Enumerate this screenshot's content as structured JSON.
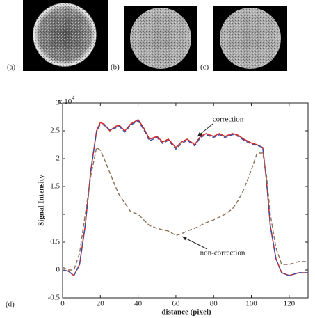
{
  "panel_labels": [
    "(a)",
    "(b)",
    "(c)",
    "(d)"
  ],
  "chart_data": {
    "type": "line",
    "y_scale_base": "x 10",
    "y_scale_exponent": "4",
    "xlabel": "distance (pixel)",
    "ylabel": "Signal Intensity",
    "xlim": [
      0,
      130
    ],
    "xticks": [
      0,
      20,
      40,
      60,
      80,
      100,
      120
    ],
    "ylim": [
      -0.5,
      3
    ],
    "yticks": [
      -0.5,
      0,
      0.5,
      1,
      1.5,
      2,
      2.5,
      3
    ],
    "grid": false,
    "x": [
      0,
      3,
      6,
      9,
      12,
      15,
      18,
      20,
      22,
      25,
      28,
      30,
      33,
      36,
      40,
      43,
      46,
      50,
      53,
      56,
      60,
      63,
      66,
      70,
      73,
      76,
      80,
      83,
      86,
      90,
      93,
      96,
      100,
      103,
      106,
      108,
      110,
      113,
      116,
      120,
      125,
      130
    ],
    "series": [
      {
        "color": "#d42a2a",
        "dash": false,
        "values": [
          0.0,
          -0.02,
          -0.1,
          0.1,
          0.8,
          1.8,
          2.5,
          2.65,
          2.62,
          2.5,
          2.58,
          2.6,
          2.5,
          2.62,
          2.7,
          2.55,
          2.35,
          2.4,
          2.3,
          2.35,
          2.2,
          2.3,
          2.35,
          2.25,
          2.4,
          2.45,
          2.4,
          2.45,
          2.4,
          2.45,
          2.42,
          2.35,
          2.28,
          2.25,
          2.2,
          1.6,
          0.8,
          0.2,
          -0.05,
          -0.1,
          -0.05,
          -0.05
        ]
      },
      {
        "color": "#3c4fa8",
        "dash": true,
        "values": [
          0.0,
          -0.02,
          -0.1,
          0.1,
          0.8,
          1.8,
          2.48,
          2.62,
          2.6,
          2.52,
          2.55,
          2.58,
          2.48,
          2.6,
          2.68,
          2.52,
          2.32,
          2.38,
          2.27,
          2.33,
          2.17,
          2.27,
          2.33,
          2.23,
          2.38,
          2.43,
          2.38,
          2.43,
          2.38,
          2.43,
          2.4,
          2.33,
          2.26,
          2.24,
          2.2,
          1.6,
          0.8,
          0.2,
          -0.05,
          -0.1,
          -0.05,
          -0.05
        ]
      },
      {
        "color": "#8c6f55",
        "dash": true,
        "values": [
          0.05,
          0.0,
          0.0,
          0.3,
          1.0,
          1.7,
          2.2,
          2.15,
          2.0,
          1.75,
          1.5,
          1.35,
          1.2,
          1.05,
          1.0,
          0.9,
          0.8,
          0.75,
          0.72,
          0.7,
          0.62,
          0.65,
          0.7,
          0.75,
          0.8,
          0.85,
          0.9,
          0.95,
          1.0,
          1.1,
          1.25,
          1.45,
          1.8,
          2.1,
          2.1,
          1.7,
          1.0,
          0.4,
          0.1,
          0.1,
          0.15,
          0.15
        ]
      }
    ],
    "annotations": [
      {
        "text": "correction"
      },
      {
        "text": "non-correction"
      }
    ]
  }
}
